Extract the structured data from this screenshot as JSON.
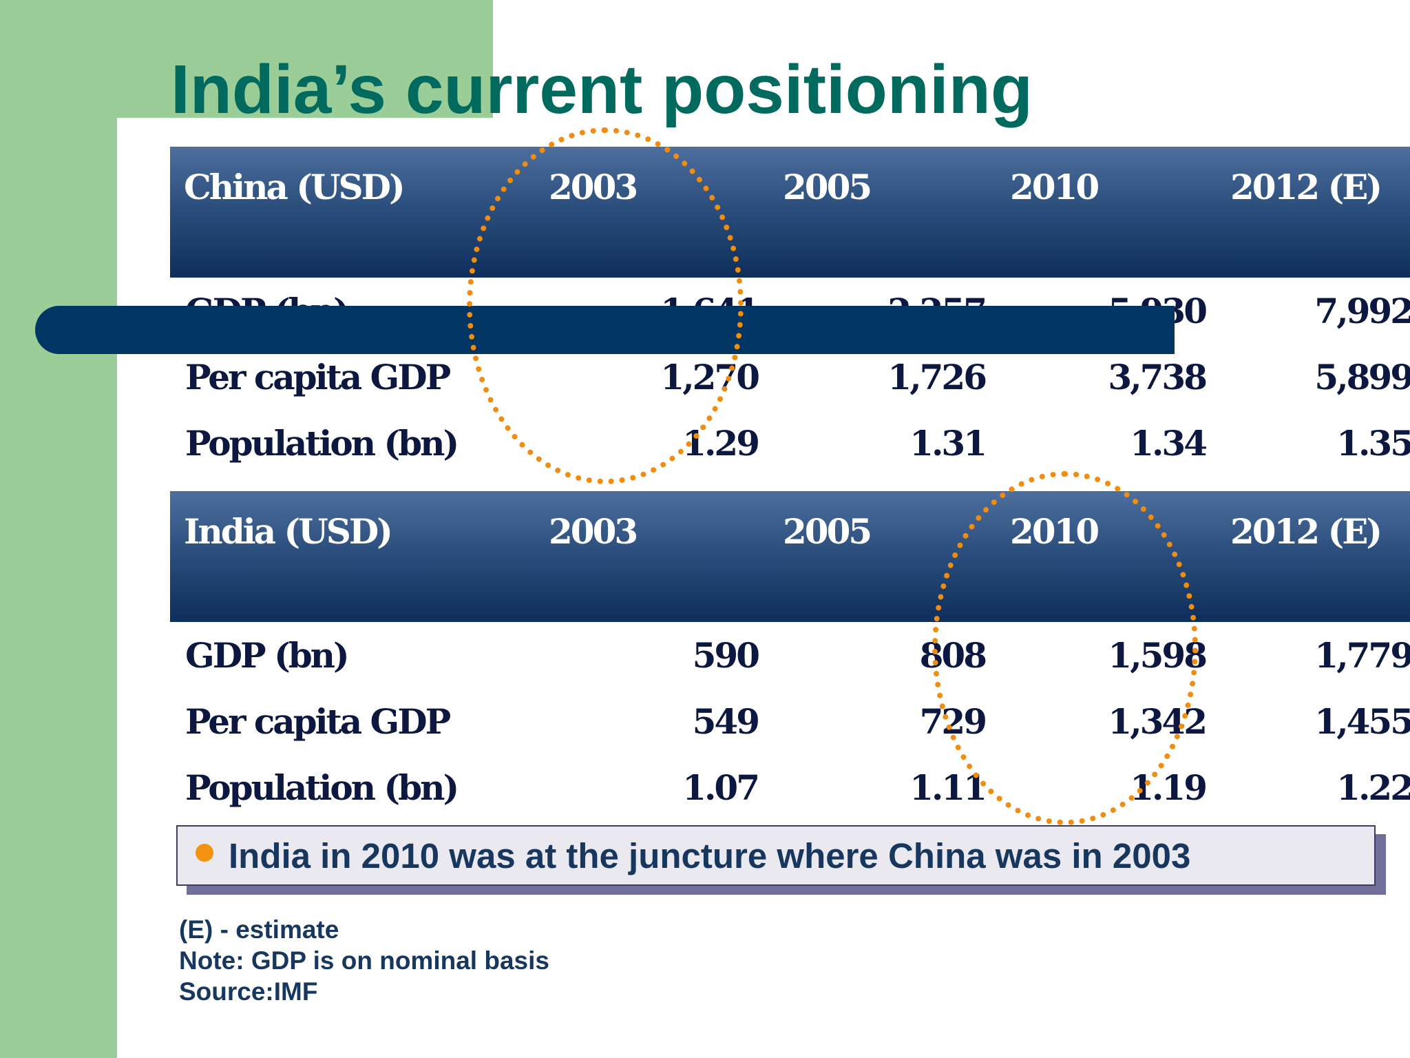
{
  "title": "India’s current positioning",
  "china": {
    "header": [
      "China (USD)",
      "2003",
      "2005",
      "2010",
      "2012 (E)"
    ],
    "rows": [
      {
        "label": "GDP (bn)",
        "values": [
          "1,641",
          "2,257",
          "5,930",
          "7,992"
        ]
      },
      {
        "label": "Per capita GDP",
        "values": [
          "1,270",
          "1,726",
          "3,738",
          "5,899"
        ]
      },
      {
        "label": "Population (bn)",
        "values": [
          "1.29",
          "1.31",
          "1.34",
          "1.35"
        ]
      }
    ]
  },
  "india": {
    "header": [
      "India (USD)",
      "2003",
      "2005",
      "2010",
      "2012 (E)"
    ],
    "rows": [
      {
        "label": "GDP (bn)",
        "values": [
          "590",
          "808",
          "1,598",
          "1,779"
        ]
      },
      {
        "label": "Per capita GDP",
        "values": [
          "549",
          "729",
          "1,342",
          "1,455"
        ]
      },
      {
        "label": "Population (bn)",
        "values": [
          "1.07",
          "1.11",
          "1.19",
          "1.22"
        ]
      }
    ]
  },
  "bullet": "India in 2010 was at the juncture where China was in 2003",
  "notes": [
    "(E) - estimate",
    "Note: GDP is on nominal basis",
    "Source:IMF"
  ],
  "colors": {
    "title": "#006a5f",
    "green_band": "#9acd98",
    "header_navy": "#1c3d6b",
    "accent_orange": "#f08c10",
    "text_navy": "#0c1840"
  }
}
